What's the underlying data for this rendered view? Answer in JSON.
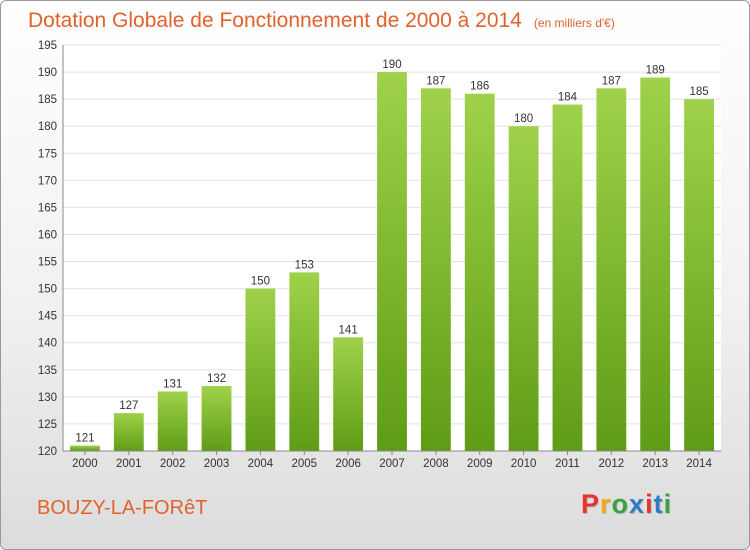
{
  "header": {
    "title": "Dotation Globale de Fonctionnement de 2000 à 2014",
    "subtitle": "(en milliers d'€)"
  },
  "footer": {
    "commune": "BOUZY-LA-FORêT",
    "logo_letters": [
      "P",
      "r",
      "o",
      "x",
      "i",
      "t",
      "i"
    ],
    "logo_colors": [
      "#e8332a",
      "#f3a51d",
      "#3aa140",
      "#2e7bc4",
      "#e8332a",
      "#2e7bc4",
      "#3aa140"
    ]
  },
  "chart_data": {
    "type": "bar",
    "categories": [
      "2000",
      "2001",
      "2002",
      "2003",
      "2004",
      "2005",
      "2006",
      "2007",
      "2008",
      "2009",
      "2010",
      "2011",
      "2012",
      "2013",
      "2014"
    ],
    "values": [
      121,
      127,
      131,
      132,
      150,
      153,
      141,
      190,
      187,
      186,
      180,
      184,
      187,
      189,
      185
    ],
    "ylim": [
      120,
      195
    ],
    "yticks": [
      120,
      125,
      130,
      135,
      140,
      145,
      150,
      155,
      160,
      165,
      170,
      175,
      180,
      185,
      190,
      195
    ],
    "grid": true,
    "bar_color_top": "#9fd24a",
    "bar_color_bottom": "#5f9c16",
    "grid_color": "#e2e2e2"
  }
}
